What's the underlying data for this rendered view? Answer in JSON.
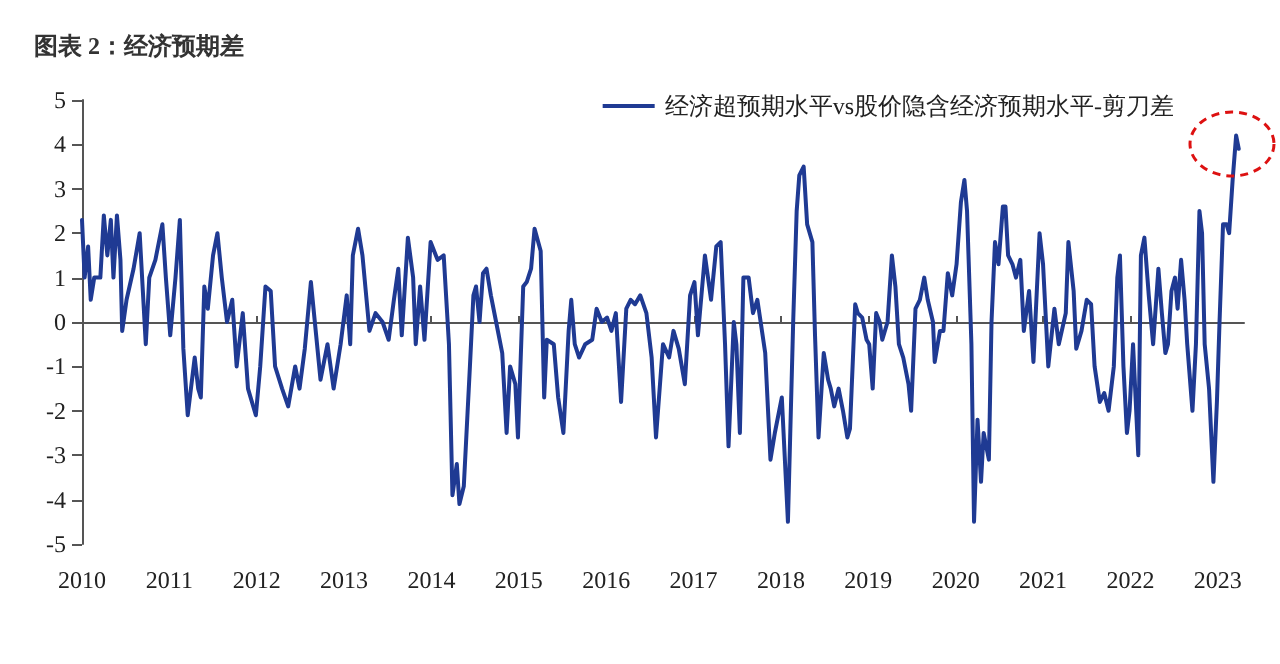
{
  "chart_data": {
    "type": "line",
    "title": "图表 2：经济预期差",
    "x": [
      2010.0,
      2010.03,
      2010.07,
      2010.1,
      2010.14,
      2010.21,
      2010.25,
      2010.29,
      2010.33,
      2010.36,
      2010.4,
      2010.44,
      2010.46,
      2010.51,
      2010.59,
      2010.66,
      2010.73,
      2010.77,
      2010.84,
      2010.92,
      2010.96,
      2011.01,
      2011.07,
      2011.12,
      2011.16,
      2011.21,
      2011.29,
      2011.33,
      2011.36,
      2011.4,
      2011.44,
      2011.5,
      2011.55,
      2011.6,
      2011.66,
      2011.72,
      2011.77,
      2011.84,
      2011.9,
      2011.99,
      2012.04,
      2012.1,
      2012.16,
      2012.21,
      2012.29,
      2012.36,
      2012.44,
      2012.49,
      2012.55,
      2012.62,
      2012.68,
      2012.73,
      2012.81,
      2012.88,
      2012.96,
      2013.03,
      2013.07,
      2013.1,
      2013.16,
      2013.21,
      2013.29,
      2013.36,
      2013.44,
      2013.51,
      2013.57,
      2013.62,
      2013.66,
      2013.73,
      2013.79,
      2013.82,
      2013.87,
      2013.92,
      2013.99,
      2014.07,
      2014.14,
      2014.2,
      2014.24,
      2014.29,
      2014.32,
      2014.37,
      2014.44,
      2014.48,
      2014.51,
      2014.55,
      2014.59,
      2014.63,
      2014.68,
      2014.74,
      2014.81,
      2014.86,
      2014.9,
      2014.96,
      2014.99,
      2015.05,
      2015.09,
      2015.14,
      2015.18,
      2015.25,
      2015.29,
      2015.32,
      2015.4,
      2015.45,
      2015.51,
      2015.57,
      2015.6,
      2015.64,
      2015.69,
      2015.76,
      2015.84,
      2015.89,
      2015.95,
      2016.01,
      2016.06,
      2016.11,
      2016.17,
      2016.23,
      2016.28,
      2016.33,
      2016.39,
      2016.46,
      2016.52,
      2016.57,
      2016.65,
      2016.72,
      2016.77,
      2016.83,
      2016.9,
      2016.96,
      2017.01,
      2017.05,
      2017.13,
      2017.2,
      2017.26,
      2017.31,
      2017.36,
      2017.4,
      2017.46,
      2017.49,
      2017.53,
      2017.57,
      2017.63,
      2017.68,
      2017.73,
      2017.79,
      2017.82,
      2017.88,
      2017.93,
      2018.01,
      2018.08,
      2018.14,
      2018.18,
      2018.21,
      2018.26,
      2018.3,
      2018.36,
      2018.39,
      2018.43,
      2018.49,
      2018.54,
      2018.57,
      2018.61,
      2018.66,
      2018.71,
      2018.76,
      2018.79,
      2018.85,
      2018.88,
      2018.93,
      2018.98,
      2019.01,
      2019.05,
      2019.09,
      2019.13,
      2019.16,
      2019.22,
      2019.27,
      2019.31,
      2019.35,
      2019.4,
      2019.46,
      2019.49,
      2019.54,
      2019.59,
      2019.64,
      2019.68,
      2019.74,
      2019.76,
      2019.82,
      2019.86,
      2019.91,
      2019.96,
      2020.01,
      2020.06,
      2020.1,
      2020.13,
      2020.18,
      2020.21,
      2020.25,
      2020.29,
      2020.32,
      2020.38,
      2020.41,
      2020.45,
      2020.49,
      2020.54,
      2020.57,
      2020.6,
      2020.65,
      2020.69,
      2020.74,
      2020.78,
      2020.84,
      2020.89,
      2020.96,
      2021.0,
      2021.06,
      2021.13,
      2021.18,
      2021.26,
      2021.29,
      2021.35,
      2021.38,
      2021.44,
      2021.5,
      2021.55,
      2021.59,
      2021.65,
      2021.7,
      2021.75,
      2021.81,
      2021.85,
      2021.88,
      2021.92,
      2021.96,
      2021.99,
      2022.03,
      2022.09,
      2022.12,
      2022.16,
      2022.21,
      2022.26,
      2022.32,
      2022.36,
      2022.4,
      2022.43,
      2022.47,
      2022.51,
      2022.54,
      2022.58,
      2022.62,
      2022.65,
      2022.71,
      2022.75,
      2022.79,
      2022.82,
      2022.85,
      2022.9,
      2022.95,
      2022.99,
      2023.02,
      2023.06,
      2023.1,
      2023.13,
      2023.17,
      2023.21,
      2023.24
    ],
    "series": [
      {
        "name": "经济超预期水平vs股价隐含经济预期水平-剪刀差",
        "color": "#1f3a93",
        "values": [
          2.3,
          1.0,
          1.7,
          0.5,
          1.0,
          1.0,
          2.4,
          1.5,
          2.3,
          1.0,
          2.4,
          1.4,
          -0.2,
          0.5,
          1.2,
          2.0,
          -0.5,
          1.0,
          1.4,
          2.2,
          1.0,
          -0.3,
          1.0,
          2.3,
          -0.6,
          -2.1,
          -0.8,
          -1.5,
          -1.7,
          0.8,
          0.3,
          1.5,
          2.0,
          1.0,
          0.0,
          0.5,
          -1.0,
          0.2,
          -1.5,
          -2.1,
          -1.0,
          0.8,
          0.7,
          -1.0,
          -1.5,
          -1.9,
          -1.0,
          -1.5,
          -0.6,
          0.9,
          -0.3,
          -1.3,
          -0.5,
          -1.5,
          -0.5,
          0.6,
          -0.5,
          1.5,
          2.1,
          1.5,
          -0.2,
          0.2,
          0.0,
          -0.4,
          0.5,
          1.2,
          -0.3,
          1.9,
          1.0,
          -0.5,
          0.8,
          -0.4,
          1.8,
          1.4,
          1.5,
          -0.5,
          -3.9,
          -3.2,
          -4.1,
          -3.7,
          -1.0,
          0.6,
          0.8,
          0.0,
          1.1,
          1.2,
          0.6,
          0.0,
          -0.7,
          -2.5,
          -1.0,
          -1.4,
          -2.6,
          0.8,
          0.9,
          1.2,
          2.1,
          1.6,
          -1.7,
          -0.4,
          -0.5,
          -1.7,
          -2.5,
          -0.2,
          0.5,
          -0.5,
          -0.8,
          -0.5,
          -0.4,
          0.3,
          0.0,
          0.1,
          -0.2,
          0.2,
          -1.8,
          0.3,
          0.5,
          0.4,
          0.6,
          0.2,
          -0.8,
          -2.6,
          -0.5,
          -0.8,
          -0.2,
          -0.6,
          -1.4,
          0.6,
          0.9,
          -0.3,
          1.5,
          0.5,
          1.7,
          1.8,
          -0.5,
          -2.8,
          0.0,
          -0.5,
          -2.5,
          1.0,
          1.0,
          0.2,
          0.5,
          -0.3,
          -0.7,
          -3.1,
          -2.5,
          -1.7,
          -4.5,
          0.0,
          2.5,
          3.3,
          3.5,
          2.2,
          1.8,
          -0.3,
          -2.6,
          -0.7,
          -1.3,
          -1.5,
          -1.9,
          -1.5,
          -2.0,
          -2.6,
          -2.4,
          0.4,
          0.2,
          0.1,
          -0.4,
          -0.5,
          -1.5,
          0.2,
          0.0,
          -0.4,
          0.0,
          1.5,
          0.8,
          -0.5,
          -0.8,
          -1.4,
          -2.0,
          0.3,
          0.5,
          1.0,
          0.5,
          0.0,
          -0.9,
          -0.2,
          -0.2,
          1.1,
          0.6,
          1.3,
          2.7,
          3.2,
          2.5,
          -0.5,
          -4.5,
          -2.2,
          -3.6,
          -2.5,
          -3.1,
          0.0,
          1.8,
          1.3,
          2.6,
          2.6,
          1.5,
          1.3,
          1.0,
          1.4,
          -0.2,
          0.7,
          -0.9,
          2.0,
          1.3,
          -1.0,
          0.3,
          -0.5,
          0.2,
          1.8,
          0.7,
          -0.6,
          -0.2,
          0.5,
          0.4,
          -1.0,
          -1.8,
          -1.6,
          -2.0,
          -1.0,
          1.0,
          1.5,
          -1.0,
          -2.5,
          -2.0,
          -0.5,
          -3.0,
          1.5,
          1.9,
          0.6,
          -0.5,
          1.2,
          0.2,
          -0.7,
          -0.5,
          0.7,
          1.0,
          0.3,
          1.4,
          0.5,
          -0.5,
          -2.0,
          -0.5,
          2.5,
          2.0,
          -0.5,
          -1.5,
          -3.6,
          -1.8,
          0.0,
          2.2,
          2.2,
          2.0,
          3.2,
          4.2,
          3.9
        ]
      }
    ],
    "xlim": [
      2010,
      2023.3
    ],
    "xticks": [
      2010,
      2011,
      2012,
      2013,
      2014,
      2015,
      2016,
      2017,
      2018,
      2019,
      2020,
      2021,
      2022,
      2023
    ],
    "ylim": [
      -5,
      5
    ],
    "yticks": [
      -5,
      -4,
      -3,
      -2,
      -1,
      0,
      1,
      2,
      3,
      4,
      5
    ],
    "legend": "top right",
    "marker": "none",
    "line_style": "solid"
  }
}
